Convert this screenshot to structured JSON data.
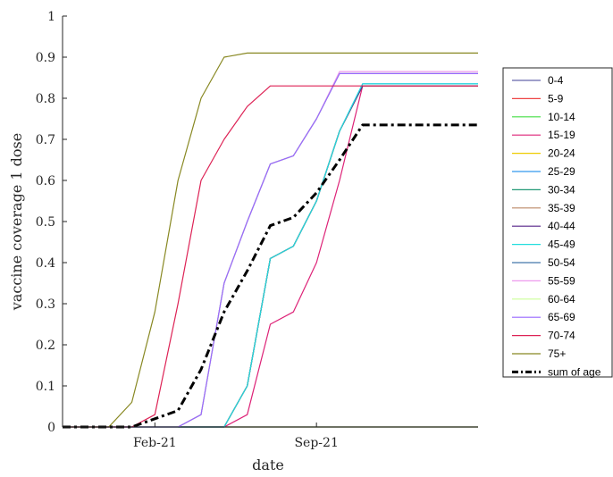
{
  "chart_data": {
    "type": "line",
    "xlabel": "date",
    "ylabel": "vaccine coverage 1 dose",
    "xticks": [
      "Feb-21",
      "Sep-21"
    ],
    "ylim": [
      0,
      1
    ],
    "yticks": [
      "0",
      "0.1",
      "0.2",
      "0.3",
      "0.4",
      "0.5",
      "0.6",
      "0.7",
      "0.8",
      "0.9",
      "1"
    ],
    "legend_position": "right",
    "grid": false,
    "x": [
      "Oct-20",
      "Nov-20",
      "Dec-20",
      "Jan-21",
      "Feb-21",
      "Mar-21",
      "Apr-21",
      "May-21",
      "Jun-21",
      "Jul-21",
      "Aug-21",
      "Sep-21",
      "Oct-21",
      "Nov-21",
      "Dec-21",
      "Jan-22",
      "Feb-22",
      "Mar-22",
      "Apr-22"
    ],
    "series": [
      {
        "name": "0-4",
        "color": "#6666aa",
        "values": [
          0,
          0,
          0,
          0,
          0,
          0,
          0,
          0,
          0,
          0,
          0,
          0,
          0,
          0,
          0,
          0,
          0,
          0,
          0
        ]
      },
      {
        "name": "5-9",
        "color": "#ee4444",
        "values": [
          0,
          0,
          0,
          0,
          0,
          0,
          0,
          0,
          0,
          0,
          0,
          0,
          0,
          0,
          0,
          0,
          0,
          0,
          0
        ]
      },
      {
        "name": "10-14",
        "color": "#44dd44",
        "values": [
          0,
          0,
          0,
          0,
          0,
          0,
          0,
          0,
          0,
          0,
          0,
          0,
          0,
          0,
          0,
          0,
          0,
          0,
          0
        ]
      },
      {
        "name": "15-19",
        "color": "#dd2277",
        "values": [
          0,
          0,
          0,
          0,
          0,
          0,
          0,
          0,
          0.03,
          0.25,
          0.28,
          0.4,
          0.6,
          0.83,
          0.83,
          0.83,
          0.83,
          0.83,
          0.83
        ]
      },
      {
        "name": "20-24",
        "color": "#eecc00",
        "values": [
          0,
          0,
          0,
          0,
          0,
          0,
          0,
          0,
          0.1,
          0.41,
          0.44,
          0.55,
          0.72,
          0.83,
          0.83,
          0.83,
          0.83,
          0.83,
          0.83
        ]
      },
      {
        "name": "25-29",
        "color": "#3399ee",
        "values": [
          0,
          0,
          0,
          0,
          0,
          0,
          0,
          0,
          0.1,
          0.41,
          0.44,
          0.55,
          0.72,
          0.835,
          0.835,
          0.835,
          0.835,
          0.835,
          0.835
        ]
      },
      {
        "name": "30-34",
        "color": "#229977",
        "values": [
          0,
          0,
          0,
          0,
          0,
          0,
          0,
          0,
          0.1,
          0.41,
          0.44,
          0.55,
          0.72,
          0.83,
          0.83,
          0.83,
          0.83,
          0.83,
          0.83
        ]
      },
      {
        "name": "35-39",
        "color": "#bb8866",
        "values": [
          0,
          0,
          0,
          0,
          0,
          0,
          0,
          0,
          0.1,
          0.41,
          0.44,
          0.55,
          0.72,
          0.83,
          0.83,
          0.83,
          0.83,
          0.83,
          0.83
        ]
      },
      {
        "name": "40-44",
        "color": "#552288",
        "values": [
          0,
          0,
          0,
          0,
          0,
          0,
          0,
          0,
          0.1,
          0.41,
          0.44,
          0.55,
          0.72,
          0.83,
          0.83,
          0.83,
          0.83,
          0.83,
          0.83
        ]
      },
      {
        "name": "45-49",
        "color": "#22dddd",
        "values": [
          0,
          0,
          0,
          0,
          0,
          0,
          0,
          0,
          0.1,
          0.41,
          0.44,
          0.55,
          0.72,
          0.835,
          0.835,
          0.835,
          0.835,
          0.835,
          0.835
        ]
      },
      {
        "name": "50-54",
        "color": "#4477aa",
        "values": [
          0,
          0,
          0,
          0,
          0,
          0,
          0.03,
          0.35,
          0.5,
          0.64,
          0.66,
          0.75,
          0.86,
          0.86,
          0.86,
          0.86,
          0.86,
          0.86,
          0.86
        ]
      },
      {
        "name": "55-59",
        "color": "#ee99ee",
        "values": [
          0,
          0,
          0,
          0,
          0,
          0,
          0.03,
          0.35,
          0.5,
          0.64,
          0.66,
          0.75,
          0.865,
          0.865,
          0.865,
          0.865,
          0.865,
          0.865,
          0.865
        ]
      },
      {
        "name": "60-64",
        "color": "#ccff99",
        "values": [
          0,
          0,
          0,
          0,
          0,
          0,
          0.03,
          0.35,
          0.5,
          0.64,
          0.66,
          0.75,
          0.86,
          0.86,
          0.86,
          0.86,
          0.86,
          0.86,
          0.86
        ]
      },
      {
        "name": "65-69",
        "color": "#9966ff",
        "values": [
          0,
          0,
          0,
          0,
          0,
          0,
          0.03,
          0.35,
          0.5,
          0.64,
          0.66,
          0.75,
          0.86,
          0.86,
          0.86,
          0.86,
          0.86,
          0.86,
          0.86
        ]
      },
      {
        "name": "70-74",
        "color": "#dd2255",
        "values": [
          0,
          0,
          0,
          0,
          0.03,
          0.3,
          0.6,
          0.7,
          0.78,
          0.83,
          0.83,
          0.83,
          0.83,
          0.83,
          0.83,
          0.83,
          0.83,
          0.83,
          0.83
        ]
      },
      {
        "name": "75+",
        "color": "#888822",
        "values": [
          0,
          0,
          0,
          0.06,
          0.28,
          0.6,
          0.8,
          0.9,
          0.91,
          0.91,
          0.91,
          0.91,
          0.91,
          0.91,
          0.91,
          0.91,
          0.91,
          0.91,
          0.91
        ]
      },
      {
        "name": "sum of age",
        "color": "#000000",
        "dashed": true,
        "values": [
          0,
          0,
          0,
          0,
          0.02,
          0.04,
          0.14,
          0.28,
          0.38,
          0.49,
          0.51,
          0.57,
          0.65,
          0.735,
          0.735,
          0.735,
          0.735,
          0.735,
          0.735
        ]
      }
    ]
  }
}
